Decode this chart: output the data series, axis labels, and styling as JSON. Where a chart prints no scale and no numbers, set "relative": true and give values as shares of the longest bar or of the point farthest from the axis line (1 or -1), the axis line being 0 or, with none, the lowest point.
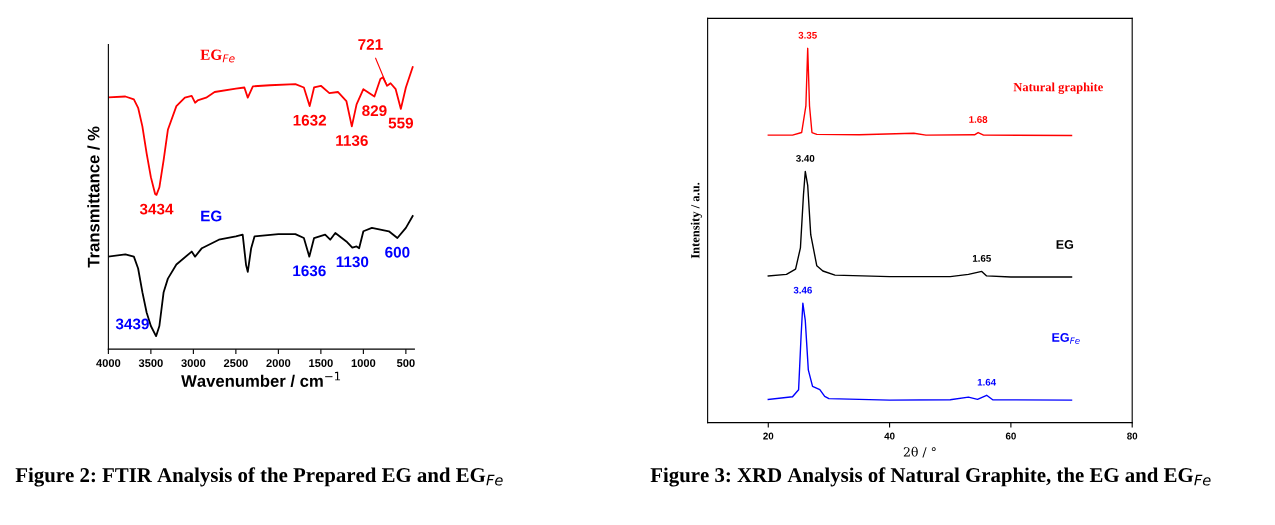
{
  "chart_data": [
    {
      "type": "line",
      "title": "Figure 2: FTIR Analysis of the Prepared EG and EG$_{Fe}$",
      "xlabel": "Wavenumber / cm$^{−1}$",
      "ylabel": "Transmittance / %",
      "relative": true,
      "tick_labels": "x",
      "xlim": [
        4000,
        400
      ],
      "xticks": [
        4000,
        3500,
        3000,
        2500,
        2000,
        1500,
        1000,
        500
      ],
      "grid": false,
      "legend": false,
      "series": [
        {
          "name": "EG$_{Fe}$",
          "color": "#ff0000",
          "x": [
            4000,
            3800,
            3700,
            3650,
            3600,
            3550,
            3500,
            3450,
            3434,
            3400,
            3350,
            3300,
            3200,
            3100,
            3020,
            2980,
            2950,
            2850,
            2750,
            2500,
            2400,
            2360,
            2300,
            2100,
            1800,
            1700,
            1632,
            1580,
            1500,
            1400,
            1300,
            1200,
            1136,
            1080,
            1000,
            870,
            800,
            770,
            721,
            680,
            620,
            559,
            500,
            420
          ],
          "values": [
            0.893,
            0.896,
            0.886,
            0.856,
            0.79,
            0.694,
            0.61,
            0.55,
            0.547,
            0.574,
            0.67,
            0.778,
            0.862,
            0.892,
            0.898,
            0.874,
            0.882,
            0.892,
            0.912,
            0.924,
            0.928,
            0.892,
            0.932,
            0.936,
            0.94,
            0.928,
            0.862,
            0.928,
            0.934,
            0.908,
            0.912,
            0.88,
            0.79,
            0.868,
            0.922,
            0.896,
            0.958,
            0.964,
            0.934,
            0.943,
            0.922,
            0.852,
            0.928,
            1.0
          ]
        },
        {
          "name": "EG",
          "color": "#000000",
          "x": [
            4000,
            3800,
            3700,
            3650,
            3600,
            3550,
            3500,
            3439,
            3400,
            3350,
            3300,
            3200,
            3020,
            2980,
            2900,
            2700,
            2500,
            2420,
            2380,
            2360,
            2320,
            2280,
            2000,
            1800,
            1700,
            1636,
            1580,
            1450,
            1390,
            1330,
            1200,
            1130,
            1080,
            1050,
            1000,
            900,
            700,
            600,
            500,
            420
          ],
          "values": [
            0.328,
            0.336,
            0.328,
            0.286,
            0.202,
            0.13,
            0.082,
            0.046,
            0.082,
            0.202,
            0.25,
            0.3,
            0.346,
            0.328,
            0.358,
            0.388,
            0.4,
            0.406,
            0.298,
            0.274,
            0.358,
            0.4,
            0.408,
            0.408,
            0.394,
            0.328,
            0.394,
            0.406,
            0.388,
            0.412,
            0.382,
            0.36,
            0.364,
            0.358,
            0.418,
            0.43,
            0.418,
            0.394,
            0.43,
            0.472
          ]
        }
      ],
      "annotations": [
        {
          "text": "3434",
          "x": 3434,
          "y": 0.547
        },
        {
          "text": "1632",
          "x": 1632,
          "y": 0.862
        },
        {
          "text": "1136",
          "x": 1136,
          "y": 0.79
        },
        {
          "text": "829",
          "x": 870,
          "y": 0.896
        },
        {
          "text": "721",
          "x": 721,
          "y": 0.934
        },
        {
          "text": "559",
          "x": 559,
          "y": 0.852
        },
        {
          "text": "3439",
          "x": 3439,
          "y": 0.046
        },
        {
          "text": "1636",
          "x": 1636,
          "y": 0.328
        },
        {
          "text": "1130",
          "x": 1130,
          "y": 0.36
        },
        {
          "text": "600",
          "x": 600,
          "y": 0.394
        }
      ]
    },
    {
      "type": "line",
      "title": "Figure 3: XRD Analysis of Natural Graphite, the EG and EG$_{Fe}$",
      "xlabel": "2θ / °",
      "ylabel": "Intensity / a.u.",
      "relative": true,
      "tick_labels": "x",
      "xlim": [
        10,
        80
      ],
      "xticks": [
        20,
        40,
        60,
        80
      ],
      "grid": false,
      "legend": false,
      "series": [
        {
          "name": "Natural graphite",
          "color": "#ff0000",
          "x": [
            20,
            24,
            25.5,
            26.2,
            26.5,
            26.8,
            27.2,
            28,
            35,
            44,
            46,
            54,
            54.6,
            55.5,
            70
          ],
          "values": [
            0.768,
            0.768,
            0.775,
            0.846,
            1.0,
            0.846,
            0.775,
            0.77,
            0.769,
            0.773,
            0.768,
            0.769,
            0.775,
            0.768,
            0.767
          ]
        },
        {
          "name": "EG",
          "color": "#000000",
          "x": [
            20,
            23,
            24.5,
            25.3,
            25.8,
            26.1,
            26.5,
            27,
            28,
            29,
            31,
            40,
            50,
            53,
            55.2,
            56,
            60,
            70
          ],
          "values": [
            0.392,
            0.396,
            0.41,
            0.467,
            0.608,
            0.671,
            0.634,
            0.502,
            0.419,
            0.405,
            0.394,
            0.39,
            0.39,
            0.396,
            0.404,
            0.392,
            0.389,
            0.389
          ]
        },
        {
          "name": "EG$_{Fe}$",
          "color": "#0000ff",
          "x": [
            20,
            24,
            25,
            25.4,
            25.7,
            26.1,
            26.6,
            27.3,
            28.5,
            29.3,
            30,
            40,
            50,
            53,
            54.5,
            56,
            57,
            70
          ],
          "values": [
            0.062,
            0.069,
            0.088,
            0.229,
            0.319,
            0.273,
            0.141,
            0.097,
            0.088,
            0.07,
            0.064,
            0.06,
            0.061,
            0.068,
            0.062,
            0.073,
            0.061,
            0.06
          ]
        }
      ],
      "annotations": [
        {
          "text": "3.35",
          "x": 26.5,
          "y": 1.0
        },
        {
          "text": "1.68",
          "x": 54.6,
          "y": 0.775
        },
        {
          "text": "3.40",
          "x": 26.1,
          "y": 0.671
        },
        {
          "text": "1.65",
          "x": 55.2,
          "y": 0.404
        },
        {
          "text": "3.46",
          "x": 25.7,
          "y": 0.319
        },
        {
          "text": "1.64",
          "x": 56,
          "y": 0.073
        }
      ]
    }
  ]
}
